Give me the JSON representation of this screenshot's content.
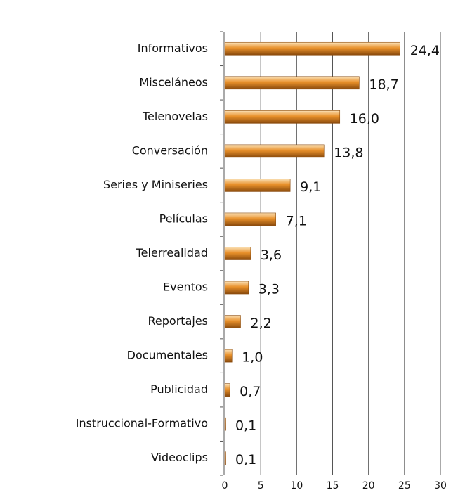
{
  "chart_data": {
    "type": "bar",
    "orientation": "horizontal",
    "categories": [
      "Informativos",
      "Misceláneos",
      "Telenovelas",
      "Conversación",
      "Series y Miniseries",
      "Películas",
      "Telerrealidad",
      "Eventos",
      "Reportajes",
      "Documentales",
      "Publicidad",
      "Instruccional-Formativo",
      "Videoclips"
    ],
    "values": [
      24.4,
      18.7,
      16.0,
      13.8,
      9.1,
      7.1,
      3.6,
      3.3,
      2.2,
      1.0,
      0.7,
      0.1,
      0.1
    ],
    "value_labels": [
      "24,4",
      "18,7",
      "16,0",
      "13,8",
      "9,1",
      "7,1",
      "3,6",
      "3,3",
      "2,2",
      "1,0",
      "0,7",
      "0,1",
      "0,1"
    ],
    "color": "#e8902a",
    "xlim": [
      0,
      30
    ],
    "xticks": [
      0,
      5,
      10,
      15,
      20,
      25,
      30
    ],
    "grid": true
  }
}
